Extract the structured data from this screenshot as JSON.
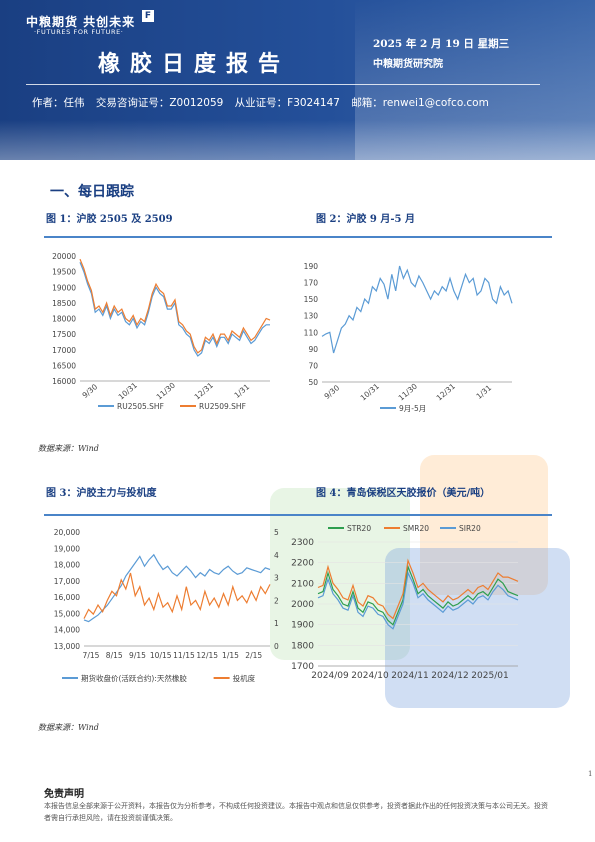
{
  "header": {
    "logo_cn": "中粮期货 共创未来",
    "logo_en": "·FUTURES FOR FUTURE·",
    "logo_mark": "F",
    "title": "橡胶日度报告",
    "date": "2025 年 2 月 19 日 星期三",
    "org": "中粮期货研究院",
    "author_label": "作者：任伟",
    "trade_cert": "交易咨询证号：Z0012059",
    "practice_cert": "从业证号：F3024147",
    "email": "邮箱：renwei1@cofco.com"
  },
  "section": {
    "title": "一、每日跟踪"
  },
  "figures": {
    "fig1_title": "图 1：沪胶 2505 及 2509",
    "fig2_title": "图 2：沪胶 9 月-5 月",
    "fig3_title": "图 3：沪胶主力与投机度",
    "fig4_title": "图 4：青岛保税区天胶报价（美元/吨）",
    "source1": "数据来源：Wind",
    "source2": "数据来源：Wind"
  },
  "chart_data": [
    {
      "type": "line",
      "id": "fig1",
      "x_ticks": [
        "9/30",
        "10/31",
        "11/30",
        "12/31",
        "1/31"
      ],
      "y_ticks": [
        "20000",
        "19500",
        "19000",
        "18500",
        "18000",
        "17500",
        "17000",
        "16500",
        "16000"
      ],
      "ylim": [
        16000,
        20000
      ],
      "series": [
        {
          "name": "RU2505.SHF",
          "color": "#5b9bd5",
          "values": [
            19800,
            19500,
            19100,
            18800,
            18200,
            18300,
            18100,
            18400,
            18000,
            18300,
            18100,
            18200,
            17900,
            17800,
            18000,
            17700,
            17900,
            17800,
            18200,
            18700,
            19000,
            18800,
            18700,
            18300,
            18300,
            18500,
            17800,
            17700,
            17500,
            17400,
            17000,
            16800,
            16900,
            17300,
            17200,
            17400,
            17100,
            17400,
            17400,
            17200,
            17500,
            17400,
            17300,
            17600,
            17400,
            17200,
            17300,
            17500,
            17700,
            17800,
            17800
          ]
        },
        {
          "name": "RU2509.SHF",
          "color": "#ed7d31",
          "values": [
            19900,
            19600,
            19200,
            18900,
            18300,
            18400,
            18200,
            18500,
            18100,
            18400,
            18200,
            18300,
            18000,
            17900,
            18100,
            17800,
            18000,
            17900,
            18300,
            18800,
            19100,
            18900,
            18800,
            18400,
            18400,
            18600,
            17900,
            17800,
            17600,
            17500,
            17100,
            16900,
            17000,
            17400,
            17300,
            17500,
            17200,
            17500,
            17500,
            17300,
            17600,
            17500,
            17400,
            17700,
            17500,
            17300,
            17400,
            17600,
            17800,
            18000,
            17950
          ]
        }
      ]
    },
    {
      "type": "line",
      "id": "fig2",
      "x_ticks": [
        "9/30",
        "10/31",
        "11/30",
        "12/31",
        "1/31"
      ],
      "y_ticks": [
        "190",
        "170",
        "150",
        "130",
        "110",
        "90",
        "70",
        "50"
      ],
      "ylim": [
        50,
        190
      ],
      "series": [
        {
          "name": "9月-5月",
          "color": "#5b9bd5",
          "values": [
            105,
            108,
            110,
            85,
            100,
            115,
            120,
            130,
            125,
            140,
            135,
            150,
            145,
            165,
            160,
            175,
            168,
            150,
            180,
            160,
            190,
            175,
            185,
            170,
            165,
            178,
            170,
            160,
            150,
            160,
            155,
            165,
            160,
            175,
            160,
            150,
            165,
            180,
            170,
            175,
            155,
            160,
            175,
            170,
            150,
            145,
            165,
            155,
            160,
            145
          ]
        }
      ]
    },
    {
      "type": "line",
      "id": "fig3",
      "x_ticks": [
        "7/15",
        "8/15",
        "9/15",
        "10/15",
        "11/15",
        "12/15",
        "1/15",
        "2/15"
      ],
      "y_ticks_left": [
        "20,000",
        "19,000",
        "18,000",
        "17,000",
        "16,000",
        "15,000",
        "14,000",
        "13,000"
      ],
      "y_ticks_right": [
        "5",
        "4",
        "3",
        "2",
        "1",
        "0"
      ],
      "ylim_left": [
        13000,
        20000
      ],
      "ylim_right": [
        0,
        5
      ],
      "series": [
        {
          "name": "期货收盘价(活跃合约):天然橡胶",
          "color": "#5b9bd5",
          "axis": "left",
          "values": [
            14600,
            14500,
            14700,
            14900,
            15200,
            15500,
            15900,
            16300,
            16700,
            17300,
            17700,
            18100,
            18500,
            17900,
            18300,
            18600,
            18100,
            17700,
            17900,
            17500,
            17300,
            17600,
            17900,
            17600,
            17200,
            17500,
            17300,
            17700,
            17500,
            17400,
            17700,
            17900,
            17600,
            17400,
            17500,
            17800,
            17700,
            17600,
            17500,
            17800,
            17700
          ]
        },
        {
          "name": "投机度",
          "color": "#ed7d31",
          "axis": "right",
          "values": [
            1.2,
            1.6,
            1.4,
            1.8,
            1.5,
            2.0,
            2.4,
            2.2,
            2.9,
            2.5,
            3.2,
            2.2,
            2.6,
            1.8,
            2.1,
            1.6,
            2.3,
            1.7,
            1.9,
            1.5,
            2.2,
            1.6,
            2.6,
            1.8,
            2.0,
            1.6,
            2.4,
            1.8,
            2.1,
            1.7,
            2.3,
            1.8,
            2.6,
            2.0,
            2.2,
            1.9,
            2.4,
            2.0,
            2.6,
            2.3,
            2.7
          ]
        }
      ]
    },
    {
      "type": "line",
      "id": "fig4",
      "x_ticks": [
        "2024/09",
        "2024/10",
        "2024/11",
        "2024/12",
        "2025/01"
      ],
      "y_ticks": [
        "2300",
        "2200",
        "2100",
        "2000",
        "1900",
        "1800",
        "1700"
      ],
      "ylim": [
        1700,
        2300
      ],
      "series": [
        {
          "name": "STR20",
          "color": "#2e9e4f",
          "values": [
            2050,
            2060,
            2150,
            2070,
            2040,
            2000,
            1990,
            2060,
            1980,
            1960,
            2010,
            2000,
            1970,
            1960,
            1920,
            1900,
            1960,
            2020,
            2180,
            2120,
            2050,
            2070,
            2040,
            2020,
            2000,
            1980,
            2010,
            1990,
            2000,
            2020,
            2040,
            2020,
            2050,
            2060,
            2040,
            2080,
            2120,
            2100,
            2060,
            2050,
            2040
          ]
        },
        {
          "name": "SMR20",
          "color": "#ed7d31",
          "values": [
            2080,
            2090,
            2180,
            2100,
            2070,
            2030,
            2020,
            2090,
            2010,
            1990,
            2040,
            2030,
            2000,
            1990,
            1950,
            1930,
            1990,
            2050,
            2210,
            2150,
            2080,
            2100,
            2070,
            2050,
            2030,
            2010,
            2040,
            2020,
            2030,
            2050,
            2070,
            2050,
            2080,
            2090,
            2070,
            2110,
            2150,
            2130,
            2130,
            2120,
            2110
          ]
        },
        {
          "name": "SIR20",
          "color": "#5b9bd5",
          "values": [
            2030,
            2040,
            2120,
            2050,
            2020,
            1980,
            1970,
            2040,
            1960,
            1940,
            1990,
            1980,
            1950,
            1940,
            1900,
            1880,
            1940,
            2000,
            2150,
            2100,
            2030,
            2050,
            2020,
            2000,
            1980,
            1960,
            1990,
            1970,
            1980,
            2000,
            2020,
            2000,
            2030,
            2040,
            2020,
            2060,
            2090,
            2070,
            2040,
            2030,
            2020
          ]
        }
      ]
    }
  ],
  "disclaimer": {
    "title": "免责声明",
    "text": "本报告信息全部来源于公开资料，本报告仅为分析参考，不构成任何投资建议。本报告中观点和信息仅供参考，投资者据此作出的任何投资决策与本公司无关。投资者需自行承担风险，请在投资前谨慎决策。"
  },
  "page_number": "1"
}
